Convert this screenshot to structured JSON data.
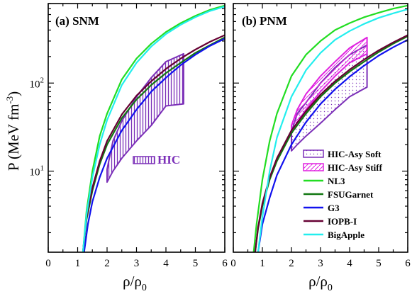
{
  "chart_data": {
    "type": "line",
    "ylabel": "P (MeV fm",
    "ylabel_sup": "-3",
    "ylabel_close": ")",
    "xlabel": "ρ/ρ",
    "xlabel_sub": "0",
    "xlim": [
      0,
      6
    ],
    "ylim": [
      1.2,
      800
    ],
    "yscale": "log",
    "x_ticks": [
      "0",
      "1",
      "2",
      "3",
      "4",
      "5",
      "6"
    ],
    "y_ticks": [
      {
        "value": 10,
        "base": "10",
        "exp": "1"
      },
      {
        "value": 100,
        "base": "10",
        "exp": "2"
      }
    ],
    "colors": {
      "NL3": "#22dd22",
      "FSUGarnet": "#117711",
      "G3": "#1111ee",
      "IOPB-I": "#660033",
      "BigApple": "#22eeee",
      "hic": "#7b2fb8",
      "hic_stiff": "#e020e0"
    },
    "panels": [
      {
        "label": "(a) SNM",
        "bands": [
          {
            "name": "HIC",
            "color": "#7b2fb8",
            "pattern": "vlines",
            "x": [
              2.0,
              2.2,
              2.5,
              3.0,
              3.5,
              4.0,
              4.6
            ],
            "lower": [
              7.5,
              10,
              14,
              22,
              33,
              55,
              58
            ],
            "upper": [
              10.5,
              22,
              37,
              70,
              115,
              175,
              215
            ]
          }
        ],
        "annotation": "HIC",
        "series": [
          {
            "name": "NL3",
            "color": "#22dd22",
            "x": [
              1.18,
              1.3,
              1.5,
              1.75,
              2.0,
              2.5,
              3.0,
              3.5,
              4.0,
              4.5,
              5.0,
              5.5,
              6.0
            ],
            "y": [
              1.2,
              3.5,
              10,
              25,
              45,
              110,
              190,
              280,
              380,
              480,
              580,
              680,
              760
            ]
          },
          {
            "name": "FSUGarnet",
            "color": "#117711",
            "x": [
              1.18,
              1.3,
              1.5,
              1.75,
              2.0,
              2.5,
              3.0,
              3.5,
              4.0,
              4.5,
              5.0,
              5.5,
              6.0
            ],
            "y": [
              1.2,
              2.8,
              6,
              12,
              20,
              40,
              65,
              95,
              130,
              170,
              220,
              270,
              330
            ]
          },
          {
            "name": "G3",
            "color": "#1111ee",
            "x": [
              1.22,
              1.35,
              1.5,
              1.75,
              2.0,
              2.5,
              3.0,
              3.5,
              4.0,
              4.5,
              5.0,
              5.5,
              6.0
            ],
            "y": [
              1.2,
              2.5,
              4.5,
              8.5,
              14,
              29,
              50,
              80,
              115,
              160,
              210,
              265,
              320
            ]
          },
          {
            "name": "IOPB-I",
            "color": "#660033",
            "x": [
              1.18,
              1.3,
              1.5,
              1.75,
              2.0,
              2.5,
              3.0,
              3.5,
              4.0,
              4.5,
              5.0,
              5.5,
              6.0
            ],
            "y": [
              1.2,
              3,
              6.5,
              13,
              22,
              44,
              72,
              105,
              145,
              190,
              240,
              295,
              350
            ]
          },
          {
            "name": "BigApple",
            "color": "#22eeee",
            "x": [
              1.18,
              1.3,
              1.5,
              1.75,
              2.0,
              2.5,
              3.0,
              3.5,
              4.0,
              4.5,
              5.0,
              5.5,
              6.0
            ],
            "y": [
              1.2,
              3.2,
              8.5,
              20,
              38,
              95,
              170,
              260,
              360,
              460,
              560,
              660,
              740
            ]
          }
        ]
      },
      {
        "label": "(b) PNM",
        "bands": [
          {
            "name": "HIC-Asy Soft",
            "color": "#7b2fb8",
            "pattern": "dots",
            "x": [
              2.0,
              2.2,
              2.5,
              3.0,
              3.5,
              4.0,
              4.6
            ],
            "lower": [
              17,
              20,
              25,
              35,
              50,
              70,
              90
            ],
            "upper": [
              28,
              45,
              60,
              100,
              150,
              210,
              270
            ]
          },
          {
            "name": "HIC-Asy Stiff",
            "color": "#e020e0",
            "pattern": "diag",
            "x": [
              2.0,
              2.2,
              2.5,
              3.0,
              3.5,
              4.0,
              4.6
            ],
            "lower": [
              28,
              36,
              50,
              80,
              120,
              170,
              215
            ],
            "upper": [
              33,
              50,
              75,
              120,
              175,
              250,
              330
            ]
          }
        ],
        "series": [
          {
            "name": "NL3",
            "color": "#22dd22",
            "x": [
              0.7,
              0.8,
              1.0,
              1.25,
              1.5,
              2.0,
              2.5,
              3.0,
              3.5,
              4.0,
              4.5,
              5.0,
              5.5,
              6.0
            ],
            "y": [
              1.2,
              2.5,
              8,
              22,
              45,
              120,
              210,
              300,
              400,
              480,
              560,
              630,
              700,
              760
            ]
          },
          {
            "name": "FSUGarnet",
            "color": "#117711",
            "x": [
              0.75,
              0.85,
              1.0,
              1.25,
              1.5,
              2.0,
              2.5,
              3.0,
              3.5,
              4.0,
              4.5,
              5.0,
              5.5,
              6.0
            ],
            "y": [
              1.2,
              2.2,
              4,
              8,
              13,
              27,
              45,
              70,
              100,
              135,
              175,
              225,
              280,
              340
            ]
          },
          {
            "name": "G3",
            "color": "#1111ee",
            "x": [
              0.85,
              1.0,
              1.25,
              1.5,
              2.0,
              2.5,
              3.0,
              3.5,
              4.0,
              4.5,
              5.0,
              5.5,
              6.0
            ],
            "y": [
              1.2,
              2.5,
              5,
              9,
              20,
              36,
              58,
              85,
              118,
              158,
              205,
              255,
              310
            ]
          },
          {
            "name": "IOPB-I",
            "color": "#660033",
            "x": [
              0.75,
              0.85,
              1.0,
              1.25,
              1.5,
              2.0,
              2.5,
              3.0,
              3.5,
              4.0,
              4.5,
              5.0,
              5.5,
              6.0
            ],
            "y": [
              1.2,
              2.3,
              4.3,
              8.5,
              14,
              29,
              48,
              74,
              105,
              142,
              185,
              235,
              290,
              350
            ]
          },
          {
            "name": "BigApple",
            "color": "#22eeee",
            "x": [
              0.85,
              1.0,
              1.25,
              1.5,
              2.0,
              2.5,
              3.0,
              3.5,
              4.0,
              4.5,
              5.0,
              5.5,
              6.0
            ],
            "y": [
              1.2,
              3,
              10,
              24,
              70,
              140,
              220,
              310,
              390,
              470,
              550,
              620,
              690
            ]
          }
        ],
        "legend": {
          "position": "bottom-right",
          "entries": [
            "HIC-Asy Soft",
            "HIC-Asy Stiff",
            "NL3",
            "FSUGarnet",
            "G3",
            "IOPB-I",
            "BigApple"
          ]
        }
      }
    ]
  }
}
